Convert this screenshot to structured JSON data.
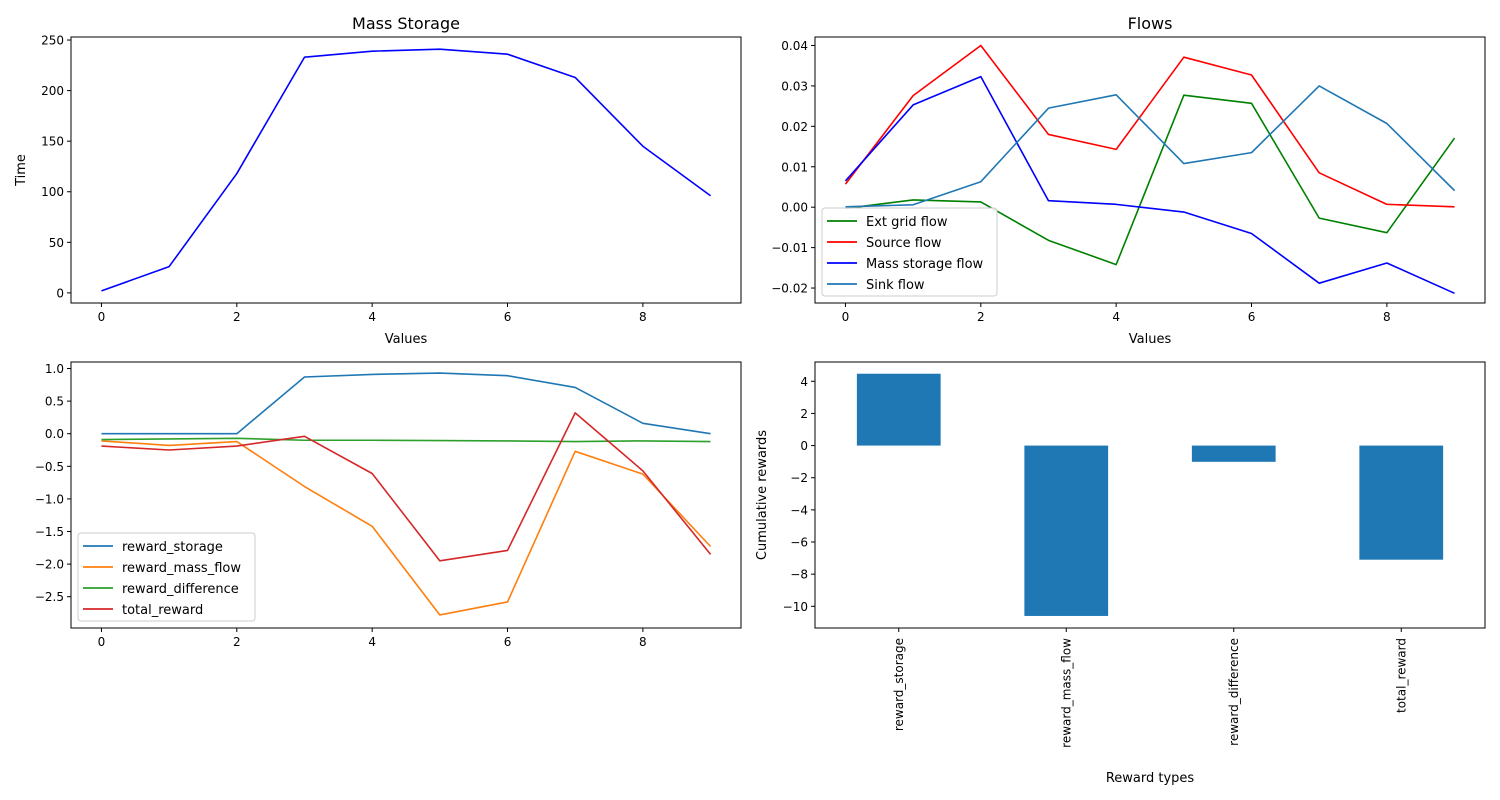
{
  "chart_data": [
    {
      "type": "line",
      "title": "Mass Storage",
      "xlabel": "Values",
      "ylabel": "Time",
      "xlim": [
        -0.45,
        9.45
      ],
      "ylim": [
        -10,
        253
      ],
      "xticks": [
        0,
        2,
        4,
        6,
        8
      ],
      "yticks": [
        0,
        50,
        100,
        150,
        200,
        250
      ],
      "grid": false,
      "series": [
        {
          "color": "#0000ff",
          "x": [
            0,
            1,
            2,
            3,
            4,
            5,
            6,
            7,
            8,
            9
          ],
          "values": [
            2,
            26,
            118,
            233,
            239,
            241,
            236,
            213,
            145,
            96
          ]
        }
      ]
    },
    {
      "type": "line",
      "title": "Flows",
      "xlabel": "Values",
      "ylabel": "",
      "xlim": [
        -0.45,
        9.45
      ],
      "ylim": [
        -0.0237,
        0.0421
      ],
      "xticks": [
        0,
        2,
        4,
        6,
        8
      ],
      "yticks": [
        -0.02,
        -0.01,
        0.0,
        0.01,
        0.02,
        0.03,
        0.04
      ],
      "ytick_labels": [
        "−0.02",
        "−0.01",
        "0.00",
        "0.01",
        "0.02",
        "0.03",
        "0.04"
      ],
      "grid": false,
      "legend": "lower-left",
      "series": [
        {
          "name": "Ext grid flow",
          "color": "#008000",
          "x": [
            0,
            1,
            2,
            3,
            4,
            5,
            6,
            7,
            8,
            9
          ],
          "values": [
            -0.0003,
            0.0018,
            0.0013,
            -0.0082,
            -0.0142,
            0.0277,
            0.0257,
            -0.0027,
            -0.0063,
            0.0171
          ]
        },
        {
          "name": "Source flow",
          "color": "#ff0000",
          "x": [
            0,
            1,
            2,
            3,
            4,
            5,
            6,
            7,
            8,
            9
          ],
          "values": [
            0.0057,
            0.0276,
            0.04,
            0.018,
            0.0143,
            0.0371,
            0.0327,
            0.0085,
            0.0007,
            0.0001
          ]
        },
        {
          "name": "Mass storage flow",
          "color": "#0000ff",
          "x": [
            0,
            1,
            2,
            3,
            4,
            5,
            6,
            7,
            8,
            9
          ],
          "values": [
            0.0065,
            0.0253,
            0.0323,
            0.0016,
            0.0007,
            -0.0012,
            -0.0065,
            -0.0188,
            -0.0138,
            -0.0213
          ]
        },
        {
          "name": "Sink flow",
          "color": "#1f77b4",
          "x": [
            0,
            1,
            2,
            3,
            4,
            5,
            6,
            7,
            8,
            9
          ],
          "values": [
            0.0001,
            0.0006,
            0.0063,
            0.0245,
            0.0278,
            0.0108,
            0.0135,
            0.03,
            0.0207,
            0.0041
          ]
        }
      ]
    },
    {
      "type": "line",
      "title": "",
      "xlabel": "",
      "ylabel": "",
      "xlim": [
        -0.45,
        9.45
      ],
      "ylim": [
        -2.98,
        1.1
      ],
      "xticks": [
        0,
        2,
        4,
        6,
        8
      ],
      "yticks": [
        -2.5,
        -2.0,
        -1.5,
        -1.0,
        -0.5,
        0.0,
        0.5,
        1.0
      ],
      "ytick_labels": [
        "−2.5",
        "−2.0",
        "−1.5",
        "−1.0",
        "−0.5",
        "0.0",
        "0.5",
        "1.0"
      ],
      "grid": false,
      "legend": "lower-left",
      "series": [
        {
          "name": "reward_storage",
          "color": "#1f77b4",
          "x": [
            0,
            1,
            2,
            3,
            4,
            5,
            6,
            7,
            8,
            9
          ],
          "values": [
            0.0,
            0.0,
            0.0,
            0.87,
            0.91,
            0.93,
            0.89,
            0.71,
            0.16,
            0.0
          ]
        },
        {
          "name": "reward_mass_flow",
          "color": "#ff7f0e",
          "x": [
            0,
            1,
            2,
            3,
            4,
            5,
            6,
            7,
            8,
            9
          ],
          "values": [
            -0.11,
            -0.18,
            -0.12,
            -0.81,
            -1.42,
            -2.78,
            -2.58,
            -0.27,
            -0.62,
            -1.73
          ]
        },
        {
          "name": "reward_difference",
          "color": "#2ca02c",
          "x": [
            0,
            1,
            2,
            3,
            4,
            5,
            6,
            7,
            8,
            9
          ],
          "values": [
            -0.09,
            -0.08,
            -0.07,
            -0.1,
            -0.1,
            -0.105,
            -0.11,
            -0.12,
            -0.11,
            -0.12
          ]
        },
        {
          "name": "total_reward",
          "color": "#d62728",
          "x": [
            0,
            1,
            2,
            3,
            4,
            5,
            6,
            7,
            8,
            9
          ],
          "values": [
            -0.19,
            -0.25,
            -0.19,
            -0.04,
            -0.61,
            -1.95,
            -1.79,
            0.32,
            -0.57,
            -1.85
          ]
        }
      ]
    },
    {
      "type": "bar",
      "title": "",
      "xlabel": "Reward types",
      "ylabel": "Cumulative rewards",
      "categories": [
        "reward_storage",
        "reward_mass_flow",
        "reward_difference",
        "total_reward"
      ],
      "values": [
        4.47,
        -10.6,
        -1.01,
        -7.1
      ],
      "color": "#1f77b4",
      "ylim": [
        -11.35,
        5.2
      ],
      "yticks": [
        -10,
        -8,
        -6,
        -4,
        -2,
        0,
        2,
        4
      ],
      "ytick_labels": [
        "−10",
        "−8",
        "−6",
        "−4",
        "−2",
        "0",
        "2",
        "4"
      ],
      "grid": false
    }
  ]
}
